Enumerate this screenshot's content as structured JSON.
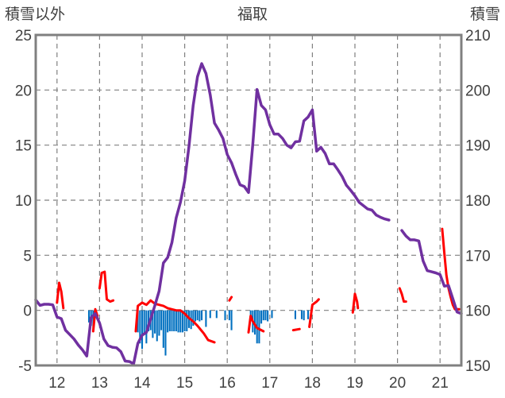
{
  "chart_data": {
    "type": "line",
    "title": "福取",
    "left_axis_label": "積雪以外",
    "right_axis_label": "積雪",
    "x_tick_labels": [
      "12",
      "13",
      "14",
      "15",
      "16",
      "17",
      "18",
      "19",
      "20",
      "21"
    ],
    "x_ticks": [
      12,
      13,
      14,
      15,
      16,
      17,
      18,
      19,
      20,
      21
    ],
    "xlim": [
      11.5,
      21.5
    ],
    "left_ylim": [
      -5,
      25
    ],
    "left_yticks": [
      -5,
      0,
      5,
      10,
      15,
      20,
      25
    ],
    "right_ylim": [
      150,
      210
    ],
    "right_yticks": [
      150,
      160,
      170,
      180,
      190,
      200,
      210
    ],
    "grid": {
      "vertical_dashed": true,
      "horizontal_dashed": true
    },
    "colors": {
      "snow_depth": "#7030A0",
      "temperature": "#FF0000",
      "precipitation": "#0070C0",
      "grid": "#808080",
      "frame": "#808080"
    },
    "series": [
      {
        "key": "snow_depth",
        "axis": "right",
        "points": [
          [
            11.5,
            161.9
          ],
          [
            11.6,
            160.9
          ],
          [
            11.7,
            161.1
          ],
          [
            11.8,
            161.1
          ],
          [
            11.9,
            161.0
          ],
          [
            12.0,
            158.8
          ],
          [
            12.1,
            158.5
          ],
          [
            12.2,
            156.4
          ],
          [
            12.3,
            155.6
          ],
          [
            12.4,
            154.8
          ],
          [
            12.5,
            153.7
          ],
          [
            12.6,
            152.8
          ],
          [
            12.7,
            151.7
          ],
          [
            12.8,
            158.7
          ],
          [
            12.9,
            159.4
          ],
          [
            13.0,
            157.7
          ],
          [
            13.1,
            154.8
          ],
          [
            13.2,
            153.6
          ],
          [
            13.3,
            153.3
          ],
          [
            13.4,
            153.2
          ],
          [
            13.5,
            152.5
          ],
          [
            13.6,
            150.8
          ],
          [
            13.7,
            150.7
          ],
          [
            13.8,
            150.3
          ],
          [
            13.9,
            154.0
          ],
          [
            14.0,
            155.5
          ],
          [
            14.1,
            156.0
          ],
          [
            14.2,
            158.4
          ],
          [
            14.3,
            160.9
          ],
          [
            14.4,
            163.5
          ],
          [
            14.5,
            168.6
          ],
          [
            14.6,
            169.6
          ],
          [
            14.7,
            172.3
          ],
          [
            14.8,
            176.8
          ],
          [
            14.9,
            179.6
          ],
          [
            15.0,
            183.5
          ],
          [
            15.1,
            189.8
          ],
          [
            15.2,
            197.2
          ],
          [
            15.3,
            202.4
          ],
          [
            15.4,
            204.8
          ],
          [
            15.5,
            203.0
          ],
          [
            15.6,
            199.1
          ],
          [
            15.7,
            194.0
          ],
          [
            15.8,
            192.7
          ],
          [
            15.9,
            191.2
          ],
          [
            16.0,
            188.3
          ],
          [
            16.1,
            186.8
          ],
          [
            16.2,
            184.7
          ],
          [
            16.3,
            182.8
          ],
          [
            16.4,
            182.5
          ],
          [
            16.5,
            181.4
          ],
          [
            16.6,
            190.2
          ],
          [
            16.7,
            200.1
          ],
          [
            16.8,
            197.2
          ],
          [
            16.9,
            196.4
          ],
          [
            17.0,
            193.7
          ],
          [
            17.1,
            192.0
          ],
          [
            17.2,
            192.0
          ],
          [
            17.3,
            191.2
          ],
          [
            17.4,
            190.0
          ],
          [
            17.5,
            189.5
          ],
          [
            17.6,
            190.6
          ],
          [
            17.7,
            190.7
          ],
          [
            17.8,
            194.4
          ],
          [
            17.9,
            195.1
          ],
          [
            18.0,
            196.4
          ],
          [
            18.1,
            188.9
          ],
          [
            18.2,
            189.6
          ],
          [
            18.3,
            188.5
          ],
          [
            18.4,
            186.6
          ],
          [
            18.5,
            186.6
          ],
          [
            18.6,
            185.5
          ],
          [
            18.7,
            184.3
          ],
          [
            18.8,
            182.7
          ],
          [
            18.9,
            181.8
          ],
          [
            19.0,
            180.8
          ],
          [
            19.1,
            179.6
          ],
          [
            19.2,
            179.0
          ],
          [
            19.3,
            178.4
          ],
          [
            19.4,
            178.2
          ],
          [
            19.5,
            177.3
          ],
          [
            19.6,
            176.9
          ],
          [
            19.7,
            176.6
          ],
          [
            19.8,
            176.4
          ],
          [
            19.9,
            null
          ],
          [
            20.0,
            null
          ],
          [
            20.1,
            174.5
          ],
          [
            20.2,
            173.5
          ],
          [
            20.3,
            172.8
          ],
          [
            20.4,
            172.8
          ],
          [
            20.5,
            172.6
          ],
          [
            20.6,
            169.0
          ],
          [
            20.7,
            167.2
          ],
          [
            20.8,
            167.0
          ],
          [
            20.9,
            166.8
          ],
          [
            21.0,
            166.5
          ],
          [
            21.1,
            164.4
          ],
          [
            21.2,
            164.5
          ],
          [
            21.3,
            162.1
          ],
          [
            21.4,
            159.7
          ],
          [
            21.5,
            159.4
          ]
        ]
      },
      {
        "key": "temperature",
        "axis": "left",
        "segments": [
          [
            [
              12.0,
              0.7
            ],
            [
              12.05,
              2.5
            ],
            [
              12.1,
              1.7
            ],
            [
              12.15,
              0.2
            ]
          ],
          [
            [
              12.85,
              -1.9
            ],
            [
              12.9,
              0.1
            ],
            [
              12.95,
              -0.5
            ]
          ],
          [
            [
              13.0,
              2.0
            ],
            [
              13.05,
              3.4
            ],
            [
              13.12,
              3.5
            ],
            [
              13.17,
              1.0
            ],
            [
              13.25,
              0.8
            ],
            [
              13.32,
              0.9
            ]
          ],
          [
            [
              13.85,
              -1.9
            ],
            [
              13.9,
              0.4
            ],
            [
              14.0,
              0.7
            ],
            [
              14.1,
              0.5
            ],
            [
              14.2,
              0.9
            ],
            [
              14.3,
              0.6
            ],
            [
              14.4,
              0.5
            ],
            [
              14.5,
              0.4
            ],
            [
              14.6,
              0.2
            ],
            [
              14.7,
              0.1
            ],
            [
              14.8,
              0.0
            ],
            [
              14.9,
              0.0
            ],
            [
              15.0,
              -0.3
            ],
            [
              15.1,
              -0.7
            ],
            [
              15.2,
              -1.0
            ],
            [
              15.3,
              -1.4
            ],
            [
              15.45,
              -2.1
            ],
            [
              15.55,
              -2.7
            ],
            [
              15.7,
              -2.9
            ]
          ],
          [
            [
              16.05,
              0.9
            ],
            [
              16.1,
              1.2
            ]
          ],
          [
            [
              16.5,
              -2.0
            ],
            [
              16.55,
              -0.5
            ],
            [
              16.6,
              -1.0
            ],
            [
              16.7,
              -1.6
            ],
            [
              16.8,
              -1.8
            ],
            [
              16.85,
              -1.9
            ]
          ],
          [
            [
              17.55,
              -1.8
            ],
            [
              17.7,
              -1.7
            ]
          ],
          [
            [
              17.93,
              -1.5
            ],
            [
              18.0,
              0.5
            ],
            [
              18.1,
              0.8
            ],
            [
              18.15,
              1.0
            ]
          ],
          [
            [
              18.95,
              -0.2
            ],
            [
              19.0,
              1.5
            ],
            [
              19.05,
              0.8
            ],
            [
              19.07,
              0.2
            ]
          ],
          [
            [
              20.05,
              2.0
            ],
            [
              20.1,
              1.5
            ],
            [
              20.15,
              0.8
            ],
            [
              20.2,
              0.8
            ]
          ],
          [
            [
              21.05,
              7.4
            ],
            [
              21.1,
              5.2
            ],
            [
              21.15,
              3.2
            ],
            [
              21.2,
              2.0
            ],
            [
              21.25,
              1.2
            ],
            [
              21.3,
              0.5
            ],
            [
              21.35,
              0.1
            ],
            [
              21.45,
              0.1
            ]
          ]
        ]
      },
      {
        "key": "precipitation",
        "axis": "left",
        "bars": [
          [
            12.75,
            -1.1
          ],
          [
            12.8,
            -1.4
          ],
          [
            12.85,
            -1.9
          ],
          [
            13.9,
            -2.0
          ],
          [
            13.95,
            -3.0
          ],
          [
            14.0,
            -3.5
          ],
          [
            14.05,
            -2.2
          ],
          [
            14.1,
            -3.0
          ],
          [
            14.15,
            -1.9
          ],
          [
            14.2,
            -1.8
          ],
          [
            14.25,
            -2.5
          ],
          [
            14.3,
            -2.1
          ],
          [
            14.35,
            -2.8
          ],
          [
            14.4,
            -2.3
          ],
          [
            14.45,
            -1.8
          ],
          [
            14.5,
            -3.4
          ],
          [
            14.55,
            -4.1
          ],
          [
            14.6,
            -2.0
          ],
          [
            14.65,
            -1.9
          ],
          [
            14.7,
            -1.9
          ],
          [
            14.75,
            -1.9
          ],
          [
            14.8,
            -1.9
          ],
          [
            14.85,
            -2.0
          ],
          [
            14.9,
            -2.0
          ],
          [
            14.95,
            -2.0
          ],
          [
            15.0,
            -1.9
          ],
          [
            15.05,
            -1.9
          ],
          [
            15.1,
            -1.6
          ],
          [
            15.15,
            -1.7
          ],
          [
            15.2,
            -1.4
          ],
          [
            15.25,
            -1.0
          ],
          [
            15.3,
            -0.9
          ],
          [
            15.35,
            -1.0
          ],
          [
            15.4,
            -0.9
          ],
          [
            15.5,
            -1.5
          ],
          [
            15.6,
            -0.7
          ],
          [
            15.75,
            -0.7
          ],
          [
            15.95,
            -0.9
          ],
          [
            16.05,
            -0.9
          ],
          [
            16.1,
            -1.8
          ],
          [
            16.55,
            -1.0
          ],
          [
            16.6,
            -2.0
          ],
          [
            16.65,
            -2.2
          ],
          [
            16.7,
            -3.0
          ],
          [
            16.75,
            -3.0
          ],
          [
            16.8,
            -1.2
          ],
          [
            16.85,
            -0.9
          ],
          [
            16.9,
            -0.9
          ],
          [
            16.95,
            -1.0
          ],
          [
            17.05,
            -0.7
          ],
          [
            17.6,
            -0.8
          ],
          [
            17.75,
            -0.8
          ],
          [
            17.8,
            -0.9
          ],
          [
            17.9,
            -0.8
          ]
        ]
      }
    ]
  }
}
